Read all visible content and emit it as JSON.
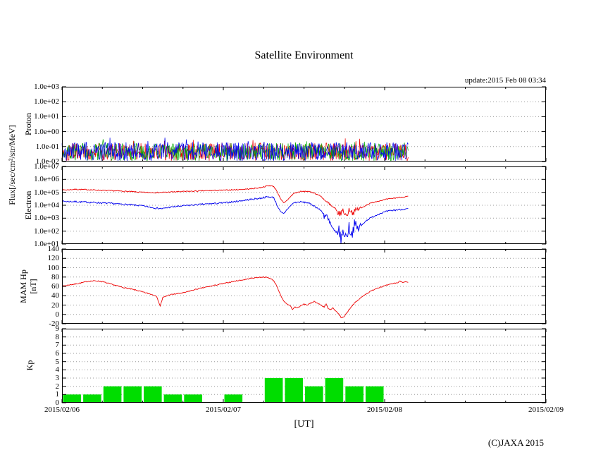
{
  "page": {
    "title": "Satellite Environment",
    "update_text": "update:2015 Feb 08 03:34",
    "copyright": "(C)JAXA 2015",
    "flux_axis_label": "Flux[/sec/cm²/str/MeV]"
  },
  "x_axis": {
    "label": "[UT]",
    "range_hours": [
      0,
      72
    ],
    "tick_hours": [
      0,
      24,
      48,
      72
    ],
    "minor_tick_hours": [
      6,
      12,
      18,
      30,
      36,
      42,
      54,
      60,
      66
    ],
    "tick_labels": [
      "2015/02/06",
      "2015/02/07",
      "2015/02/08",
      "2015/02/09"
    ]
  },
  "chart_data": [
    {
      "type": "line",
      "name": "proton-flux",
      "axis_label": "Proton",
      "yscale": "log",
      "ylim": [
        0.01,
        1000
      ],
      "ytick_values": [
        1000,
        100,
        10,
        1,
        0.1,
        0.01
      ],
      "ytick_labels": [
        "1.0e+03",
        "1.0e+02",
        "1.0e+01",
        "1.0e+00",
        "1.0e-01",
        "1.0e-02"
      ],
      "grid": true,
      "series": [
        {
          "name": "proton-red",
          "color": "#ee0000",
          "style": "noise",
          "t_range": [
            0,
            51.5
          ],
          "y_min": 0.011,
          "y_max": 0.18,
          "points": 650,
          "seed": 101
        },
        {
          "name": "proton-green",
          "color": "#00aa00",
          "style": "noise",
          "t_range": [
            0,
            51.5
          ],
          "y_min": 0.011,
          "y_max": 0.17,
          "points": 650,
          "seed": 202
        },
        {
          "name": "proton-blue",
          "color": "#0000ee",
          "style": "noise",
          "t_range": [
            0,
            51.5
          ],
          "y_min": 0.011,
          "y_max": 0.2,
          "points": 650,
          "seed": 303
        }
      ]
    },
    {
      "type": "line",
      "name": "electron-flux",
      "axis_label": "Electron",
      "yscale": "log",
      "ylim": [
        10,
        10000000
      ],
      "ytick_values": [
        10000000,
        1000000,
        100000,
        10000,
        1000,
        100,
        10
      ],
      "ytick_labels": [
        "1.0e+07",
        "1.0e+06",
        "1.0e+05",
        "1.0e+04",
        "1.0e+03",
        "1.0e+02",
        "1.0e+01"
      ],
      "grid": true,
      "series": [
        {
          "name": "electron-red",
          "color": "#ee0000",
          "style": "keypoints",
          "jitter": 0.04,
          "jitter_regions": [
            {
              "t0": 39.5,
              "t1": 44.5,
              "amp": 0.22
            }
          ],
          "t": [
            0,
            2,
            4,
            6,
            8,
            10,
            12,
            14,
            16,
            18,
            20,
            22,
            24,
            26,
            28,
            29.5,
            30.5,
            31,
            31.5,
            32,
            32.5,
            33,
            33.5,
            34.5,
            35.5,
            36.5,
            37.5,
            38.5,
            39.5,
            40.2,
            40.8,
            41.3,
            41.8,
            42.3,
            42.8,
            43.3,
            43.8,
            44.5,
            45.5,
            46.5,
            47.5,
            48.5,
            49.5,
            50.5,
            51.5
          ],
          "v": [
            150000,
            170000,
            160000,
            140000,
            130000,
            115000,
            100000,
            95000,
            105000,
            115000,
            125000,
            135000,
            145000,
            160000,
            185000,
            230000,
            310000,
            330000,
            280000,
            120000,
            30000,
            15000,
            25000,
            85000,
            115000,
            120000,
            90000,
            50000,
            15000,
            7000,
            3500,
            2000,
            4000,
            1500,
            5000,
            2500,
            4500,
            6000,
            12000,
            18000,
            24000,
            30000,
            36000,
            42000,
            48000
          ]
        },
        {
          "name": "electron-blue",
          "color": "#0000ee",
          "style": "keypoints",
          "jitter": 0.06,
          "jitter_regions": [
            {
              "t0": 39,
              "t1": 44.5,
              "amp": 0.45
            }
          ],
          "t": [
            0,
            2,
            4,
            6,
            8,
            10,
            12,
            14,
            15,
            16,
            18,
            20,
            22,
            24,
            26,
            28,
            29.5,
            30.5,
            31.5,
            32,
            32.5,
            33,
            33.5,
            34.5,
            35.5,
            36.5,
            37.5,
            38.5,
            39.2,
            39.8,
            40.3,
            40.7,
            41.1,
            41.5,
            41.9,
            42.3,
            42.7,
            43.1,
            43.5,
            44,
            44.5,
            45,
            45.5,
            46.5,
            47.5,
            48.5,
            49.5,
            50.5,
            51.5
          ],
          "v": [
            20000,
            19000,
            17000,
            15000,
            13000,
            11000,
            9000,
            6000,
            5500,
            7000,
            9000,
            11000,
            13000,
            15000,
            20000,
            28000,
            35000,
            45000,
            40000,
            10000,
            3000,
            2200,
            5000,
            16000,
            18000,
            16000,
            9000,
            4000,
            1500,
            400,
            120,
            40,
            150,
            25,
            90,
            35,
            200,
            60,
            300,
            150,
            250,
            500,
            800,
            1500,
            2500,
            3500,
            4200,
            4800,
            5200
          ]
        }
      ]
    },
    {
      "type": "line",
      "name": "mam-hp",
      "axis_label": "MAM Hp",
      "axis_label2": "[nT]",
      "yscale": "linear",
      "ylim": [
        -20,
        140
      ],
      "ytick_values": [
        140,
        120,
        100,
        80,
        60,
        40,
        20,
        0,
        -20
      ],
      "ytick_labels": [
        "140",
        "120",
        "100",
        "80",
        "60",
        "40",
        "20",
        "0",
        "-20"
      ],
      "grid": true,
      "series": [
        {
          "name": "hp-red",
          "color": "#ee0000",
          "style": "keypoints",
          "jitter": 1.0,
          "t": [
            0,
            1,
            2,
            3,
            4,
            5,
            6,
            7,
            8,
            9,
            10,
            11,
            12,
            13,
            14,
            14.3,
            14.6,
            15,
            16,
            17,
            18,
            19,
            20,
            21,
            22,
            23,
            24,
            25,
            26,
            27,
            28,
            29,
            30,
            30.5,
            31,
            31.5,
            32,
            32.3,
            32.6,
            33,
            33.5,
            34,
            34.3,
            34.6,
            35,
            35.5,
            36,
            36.5,
            37,
            37.5,
            38,
            38.5,
            39,
            39.3,
            39.6,
            40,
            40.3,
            40.6,
            41,
            41.3,
            41.6,
            42,
            42.3,
            42.6,
            43,
            43.5,
            44,
            44.5,
            45,
            45.5,
            46,
            46.5,
            47,
            47.5,
            48,
            48.5,
            49,
            49.5,
            50,
            50.3,
            50.6,
            51,
            51.5
          ],
          "v": [
            60,
            63,
            65,
            68,
            71,
            72,
            70,
            66,
            62,
            58,
            55,
            52,
            48,
            44,
            40,
            30,
            18,
            36,
            42,
            44,
            46,
            50,
            54,
            57,
            60,
            63,
            66,
            69,
            72,
            74,
            77,
            79,
            80,
            79,
            77,
            72,
            60,
            48,
            38,
            28,
            22,
            18,
            10,
            16,
            14,
            18,
            22,
            20,
            24,
            28,
            24,
            20,
            16,
            22,
            12,
            10,
            14,
            8,
            4,
            -2,
            -8,
            -4,
            2,
            8,
            16,
            24,
            30,
            36,
            42,
            46,
            50,
            54,
            57,
            59,
            61,
            63,
            65,
            67,
            68,
            72,
            69,
            70,
            68
          ]
        }
      ]
    },
    {
      "type": "bar",
      "name": "kp-index",
      "axis_label": "Kp",
      "yscale": "linear",
      "ylim": [
        0,
        9
      ],
      "ytick_values": [
        9,
        8,
        7,
        6,
        5,
        4,
        3,
        2,
        1,
        0
      ],
      "ytick_labels": [
        "9",
        "8",
        "7",
        "6",
        "5",
        "4",
        "3",
        "2",
        "1",
        "0"
      ],
      "grid": true,
      "bar_color": "#00dd00",
      "bar_width_hours": 3,
      "bars": {
        "t_start": [
          0,
          3,
          6,
          9,
          12,
          15,
          18,
          21,
          24,
          27,
          30,
          33,
          36,
          39,
          42,
          45
        ],
        "values": [
          1,
          1,
          2,
          2,
          2,
          1,
          1,
          0,
          1,
          0,
          3,
          3,
          2,
          3,
          2,
          2
        ]
      }
    }
  ]
}
